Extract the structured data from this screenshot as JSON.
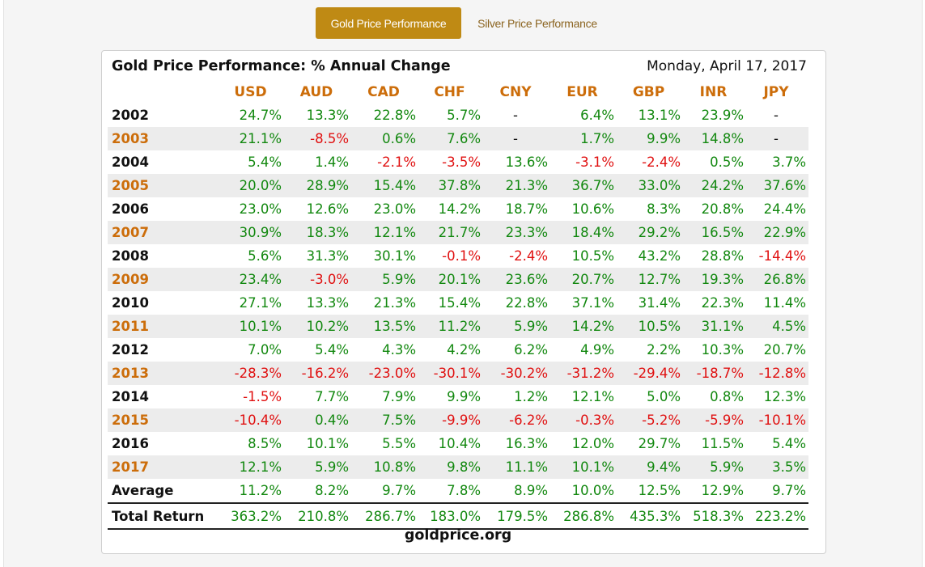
{
  "tabs": {
    "gold": "Gold Price Performance",
    "silver": "Silver Price Performance"
  },
  "title": "Gold Price Performance: % Annual Change",
  "date": "Monday, April 17, 2017",
  "headers": [
    "USD",
    "AUD",
    "CAD",
    "CHF",
    "CNY",
    "EUR",
    "GBP",
    "INR",
    "JPY"
  ],
  "rows": [
    {
      "label": "2002",
      "values": [
        "24.7%",
        "13.3%",
        "22.8%",
        "5.7%",
        "-",
        "6.4%",
        "13.1%",
        "23.9%",
        "-"
      ]
    },
    {
      "label": "2003",
      "values": [
        "21.1%",
        "-8.5%",
        "0.6%",
        "7.6%",
        "-",
        "1.7%",
        "9.9%",
        "14.8%",
        "-"
      ]
    },
    {
      "label": "2004",
      "values": [
        "5.4%",
        "1.4%",
        "-2.1%",
        "-3.5%",
        "13.6%",
        "-3.1%",
        "-2.4%",
        "0.5%",
        "3.7%"
      ]
    },
    {
      "label": "2005",
      "values": [
        "20.0%",
        "28.9%",
        "15.4%",
        "37.8%",
        "21.3%",
        "36.7%",
        "33.0%",
        "24.2%",
        "37.6%"
      ]
    },
    {
      "label": "2006",
      "values": [
        "23.0%",
        "12.6%",
        "23.0%",
        "14.2%",
        "18.7%",
        "10.6%",
        "8.3%",
        "20.8%",
        "24.4%"
      ]
    },
    {
      "label": "2007",
      "values": [
        "30.9%",
        "18.3%",
        "12.1%",
        "21.7%",
        "23.3%",
        "18.4%",
        "29.2%",
        "16.5%",
        "22.9%"
      ]
    },
    {
      "label": "2008",
      "values": [
        "5.6%",
        "31.3%",
        "30.1%",
        "-0.1%",
        "-2.4%",
        "10.5%",
        "43.2%",
        "28.8%",
        "-14.4%"
      ]
    },
    {
      "label": "2009",
      "values": [
        "23.4%",
        "-3.0%",
        "5.9%",
        "20.1%",
        "23.6%",
        "20.7%",
        "12.7%",
        "19.3%",
        "26.8%"
      ]
    },
    {
      "label": "2010",
      "values": [
        "27.1%",
        "13.3%",
        "21.3%",
        "15.4%",
        "22.8%",
        "37.1%",
        "31.4%",
        "22.3%",
        "11.4%"
      ]
    },
    {
      "label": "2011",
      "values": [
        "10.1%",
        "10.2%",
        "13.5%",
        "11.2%",
        "5.9%",
        "14.2%",
        "10.5%",
        "31.1%",
        "4.5%"
      ]
    },
    {
      "label": "2012",
      "values": [
        "7.0%",
        "5.4%",
        "4.3%",
        "4.2%",
        "6.2%",
        "4.9%",
        "2.2%",
        "10.3%",
        "20.7%"
      ]
    },
    {
      "label": "2013",
      "values": [
        "-28.3%",
        "-16.2%",
        "-23.0%",
        "-30.1%",
        "-30.2%",
        "-31.2%",
        "-29.4%",
        "-18.7%",
        "-12.8%"
      ]
    },
    {
      "label": "2014",
      "values": [
        "-1.5%",
        "7.7%",
        "7.9%",
        "9.9%",
        "1.2%",
        "12.1%",
        "5.0%",
        "0.8%",
        "12.3%"
      ]
    },
    {
      "label": "2015",
      "values": [
        "-10.4%",
        "0.4%",
        "7.5%",
        "-9.9%",
        "-6.2%",
        "-0.3%",
        "-5.2%",
        "-5.9%",
        "-10.1%"
      ]
    },
    {
      "label": "2016",
      "values": [
        "8.5%",
        "10.1%",
        "5.5%",
        "10.4%",
        "16.3%",
        "12.0%",
        "29.7%",
        "11.5%",
        "5.4%"
      ]
    },
    {
      "label": "2017",
      "values": [
        "12.1%",
        "5.9%",
        "10.8%",
        "9.8%",
        "11.1%",
        "10.1%",
        "9.4%",
        "5.9%",
        "3.5%"
      ]
    }
  ],
  "average": {
    "label": "Average",
    "values": [
      "11.2%",
      "8.2%",
      "9.7%",
      "7.8%",
      "8.9%",
      "10.0%",
      "12.5%",
      "12.9%",
      "9.7%"
    ]
  },
  "total": {
    "label": "Total Return",
    "values": [
      "363.2%",
      "210.8%",
      "286.7%",
      "183.0%",
      "179.5%",
      "286.8%",
      "435.3%",
      "518.3%",
      "223.2%"
    ]
  },
  "footer": "goldprice.org",
  "colors": {
    "accent": "#bf8a14",
    "header": "#cc6d0a",
    "positive": "#12880f",
    "negative": "#e01010"
  }
}
